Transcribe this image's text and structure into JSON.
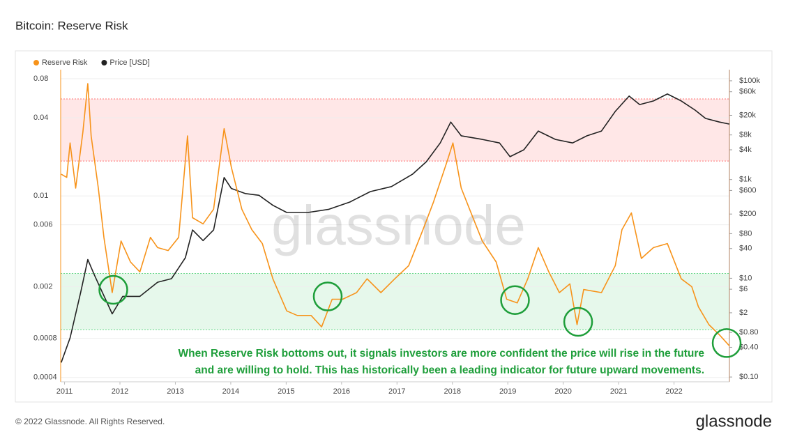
{
  "chart_data": {
    "type": "line",
    "title": "Bitcoin: Reserve Risk",
    "footer": "© 2022 Glassnode. All Rights Reserved.",
    "logo": "glassnode",
    "watermark": "glassnode",
    "annotation": [
      "When Reserve Risk bottoms out, it signals investors are more confident the price will rise in the future",
      "and are willing to hold. This has historically been a leading indicator for future upward movements."
    ],
    "annotation_color": "#1e9e3a",
    "highlights": [
      2011.88,
      2015.75,
      2019.13,
      2020.27,
      2022.95
    ],
    "highlight_color": "#1e9e3a",
    "bands": [
      {
        "from": 0.0186,
        "to": 0.0559,
        "color": "#ff3b3b"
      },
      {
        "from": 0.00093,
        "to": 0.00253,
        "color": "#2ec95c"
      }
    ],
    "xlim": [
      2010.93,
      2023.0
    ],
    "xticks": [
      2011,
      2012,
      2013,
      2014,
      2015,
      2016,
      2017,
      2018,
      2019,
      2020,
      2021,
      2022
    ],
    "ylim": [
      0.00037,
      0.094
    ],
    "y_log": true,
    "yticks": [
      0.0004,
      0.0008,
      0.002,
      0.006,
      0.01,
      0.04,
      0.08
    ],
    "y2lim": [
      0.08,
      168000
    ],
    "y2_log": true,
    "y2ticks": [
      {
        "value": 0.1,
        "label": "$0.10"
      },
      {
        "value": 0.4,
        "label": "$0.40"
      },
      {
        "value": 0.8,
        "label": "$0.80"
      },
      {
        "value": 2,
        "label": "$2"
      },
      {
        "value": 6,
        "label": "$6"
      },
      {
        "value": 10,
        "label": "$10"
      },
      {
        "value": 40,
        "label": "$40"
      },
      {
        "value": 80,
        "label": "$80"
      },
      {
        "value": 200,
        "label": "$200"
      },
      {
        "value": 600,
        "label": "$600"
      },
      {
        "value": 1000,
        "label": "$1k"
      },
      {
        "value": 4000,
        "label": "$4k"
      },
      {
        "value": 8000,
        "label": "$8k"
      },
      {
        "value": 20000,
        "label": "$20k"
      },
      {
        "value": 60000,
        "label": "$60k"
      },
      {
        "value": 100000,
        "label": "$100k"
      }
    ],
    "grid": true,
    "legend": "top-left",
    "series": [
      {
        "name": "Reserve Risk",
        "color": "#f7931a",
        "axis": "y",
        "x": [
          2010.94,
          2011.04,
          2011.1,
          2011.2,
          2011.33,
          2011.42,
          2011.48,
          2011.61,
          2011.71,
          2011.86,
          2012.02,
          2012.19,
          2012.36,
          2012.55,
          2012.68,
          2012.87,
          2013.06,
          2013.22,
          2013.31,
          2013.5,
          2013.69,
          2013.88,
          2014.01,
          2014.2,
          2014.38,
          2014.57,
          2014.76,
          2015.01,
          2015.2,
          2015.45,
          2015.64,
          2015.83,
          2016.02,
          2016.27,
          2016.46,
          2016.71,
          2016.96,
          2017.21,
          2017.47,
          2017.66,
          2017.91,
          2018.01,
          2018.16,
          2018.31,
          2018.54,
          2018.79,
          2018.98,
          2019.17,
          2019.36,
          2019.55,
          2019.74,
          2019.93,
          2020.12,
          2020.25,
          2020.37,
          2020.69,
          2020.94,
          2021.06,
          2021.23,
          2021.41,
          2021.63,
          2021.88,
          2022.13,
          2022.32,
          2022.44,
          2022.63,
          2022.82,
          2023.0
        ],
        "values": [
          0.0147,
          0.0139,
          0.0256,
          0.0115,
          0.0309,
          0.0734,
          0.029,
          0.0115,
          0.0048,
          0.0018,
          0.0045,
          0.0031,
          0.0026,
          0.0048,
          0.004,
          0.0038,
          0.0048,
          0.029,
          0.0068,
          0.0061,
          0.0079,
          0.033,
          0.0167,
          0.0079,
          0.0055,
          0.0043,
          0.0023,
          0.0013,
          0.0012,
          0.0012,
          0.00098,
          0.0016,
          0.0016,
          0.0018,
          0.0023,
          0.0018,
          0.0023,
          0.0029,
          0.0055,
          0.009,
          0.0188,
          0.0256,
          0.0115,
          0.0079,
          0.0045,
          0.0031,
          0.0016,
          0.0015,
          0.0023,
          0.004,
          0.0026,
          0.0018,
          0.0021,
          0.00102,
          0.0019,
          0.0018,
          0.0029,
          0.0055,
          0.0074,
          0.0033,
          0.004,
          0.0043,
          0.0023,
          0.002,
          0.0014,
          0.00102,
          0.00085,
          0.0007
        ]
      },
      {
        "name": "Price [USD]",
        "color": "#222222",
        "axis": "y2",
        "x": [
          2010.94,
          2011.1,
          2011.29,
          2011.42,
          2011.54,
          2011.86,
          2012.05,
          2012.36,
          2012.68,
          2012.93,
          2013.18,
          2013.31,
          2013.5,
          2013.69,
          2013.88,
          2014.01,
          2014.26,
          2014.51,
          2014.76,
          2015.01,
          2015.39,
          2015.77,
          2016.15,
          2016.52,
          2016.9,
          2017.28,
          2017.53,
          2017.78,
          2017.97,
          2018.16,
          2018.54,
          2018.85,
          2019.04,
          2019.29,
          2019.55,
          2019.86,
          2020.17,
          2020.43,
          2020.69,
          2020.94,
          2021.19,
          2021.38,
          2021.63,
          2021.88,
          2022.13,
          2022.38,
          2022.57,
          2022.82,
          2023.0
        ],
        "values": [
          0.197,
          0.62,
          5.1,
          24,
          11.5,
          1.9,
          4.3,
          4.3,
          8.3,
          9.8,
          26,
          95,
          58,
          95,
          1100,
          660,
          520,
          480,
          300,
          215,
          215,
          250,
          350,
          570,
          720,
          1280,
          2300,
          5500,
          14600,
          7700,
          6500,
          5500,
          2900,
          4000,
          9600,
          6500,
          5500,
          7700,
          9600,
          24000,
          49000,
          33000,
          39000,
          54000,
          39000,
          25500,
          17300,
          14600,
          13300
        ]
      }
    ]
  }
}
